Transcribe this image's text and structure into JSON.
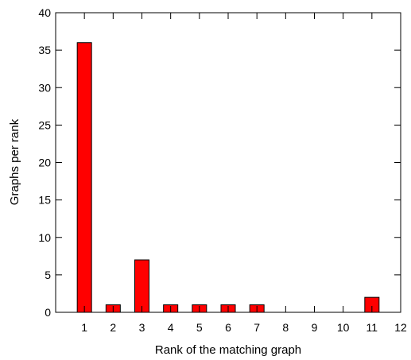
{
  "chart_data": {
    "type": "bar",
    "xlabel": "Rank of the matching graph",
    "ylabel": "Graphs per rank",
    "xlim": [
      0,
      12
    ],
    "ylim": [
      0,
      40
    ],
    "x_ticks": [
      "1",
      "2",
      "3",
      "4",
      "5",
      "6",
      "7",
      "8",
      "9",
      "10",
      "11",
      "12"
    ],
    "y_ticks": [
      "0",
      "5",
      "10",
      "15",
      "20",
      "25",
      "30",
      "35",
      "40"
    ],
    "categories": [
      1,
      2,
      3,
      4,
      5,
      6,
      7,
      8,
      9,
      10,
      11
    ],
    "values": [
      36,
      1,
      7,
      1,
      1,
      1,
      1,
      0,
      0,
      0,
      2
    ],
    "bar_color": "#ff0000",
    "grid": false,
    "legend": "none"
  }
}
